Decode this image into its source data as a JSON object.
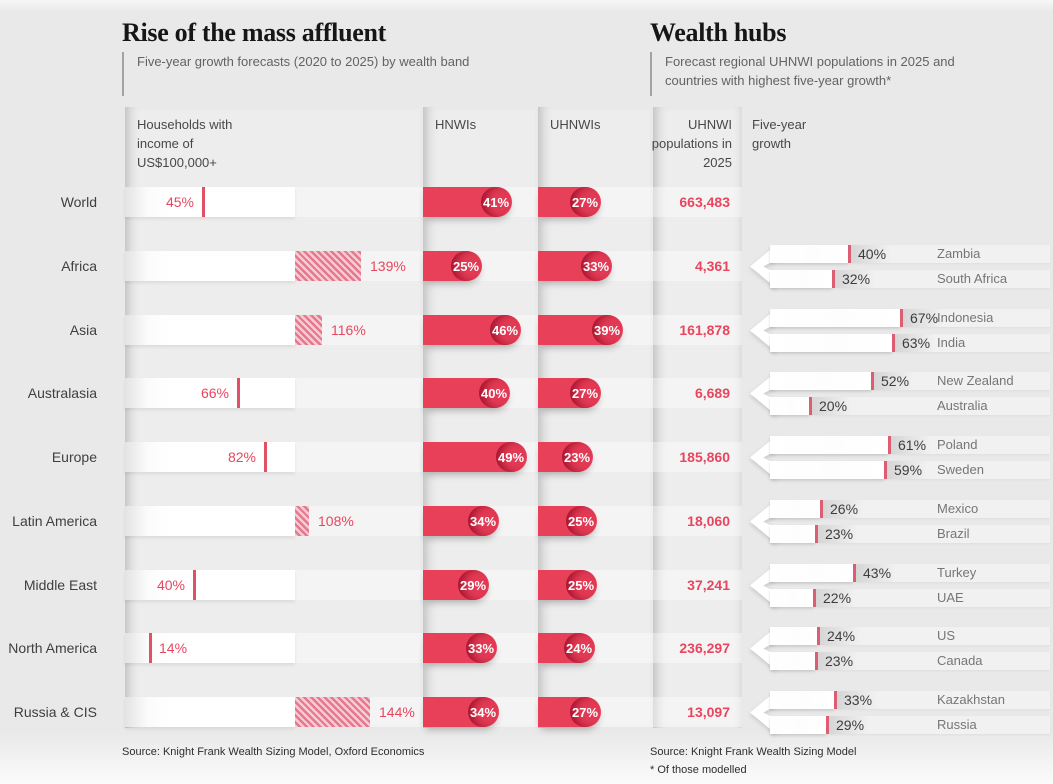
{
  "left_chart": {
    "title": "Rise of the mass affluent",
    "subtitle": "Five-year growth forecasts (2020 to 2025) by wealth band",
    "columns": {
      "households": "Households with income of US$100,000+",
      "hnwis": "HNWIs",
      "uhnwis": "UHNWIs"
    },
    "source": "Source: Knight Frank Wealth Sizing Model, Oxford Economics"
  },
  "right_chart": {
    "title": "Wealth hubs",
    "subtitle": "Forecast regional UHNWI populations in 2025 and countries with highest five-year growth*",
    "columns": {
      "populations": "UHNWI populations in 2025",
      "growth": "Five-year growth"
    },
    "source": "Source: Knight Frank Wealth Sizing Model",
    "footnote": "* Of those modelled"
  },
  "colors": {
    "accent_red": "#e8465f",
    "pill_red": "#e74058",
    "background_grey": "#e9e9e9"
  },
  "chart_data": {
    "type": "bar",
    "unit": "percent growth 2020-2025",
    "categories": [
      "World",
      "Africa",
      "Asia",
      "Australasia",
      "Europe",
      "Latin America",
      "Middle East",
      "North America",
      "Russia & CIS"
    ],
    "series_note": "households bar drawn on 0-100% track; hatched segment = amount above 100%",
    "rows": [
      {
        "region": "World",
        "households_income_100k_growth": 45,
        "hnwi_growth": 41,
        "uhnwi_growth": 27,
        "uhnwi_population_2025": "663,483",
        "top_countries": []
      },
      {
        "region": "Africa",
        "households_income_100k_growth": 139,
        "hnwi_growth": 25,
        "uhnwi_growth": 33,
        "uhnwi_population_2025": "4,361",
        "top_countries": [
          {
            "name": "Zambia",
            "growth": 40
          },
          {
            "name": "South Africa",
            "growth": 32
          }
        ]
      },
      {
        "region": "Asia",
        "households_income_100k_growth": 116,
        "hnwi_growth": 46,
        "uhnwi_growth": 39,
        "uhnwi_population_2025": "161,878",
        "top_countries": [
          {
            "name": "Indonesia",
            "growth": 67
          },
          {
            "name": "India",
            "growth": 63
          }
        ]
      },
      {
        "region": "Australasia",
        "households_income_100k_growth": 66,
        "hnwi_growth": 40,
        "uhnwi_growth": 27,
        "uhnwi_population_2025": "6,689",
        "top_countries": [
          {
            "name": "New Zealand",
            "growth": 52
          },
          {
            "name": "Australia",
            "growth": 20
          }
        ]
      },
      {
        "region": "Europe",
        "households_income_100k_growth": 82,
        "hnwi_growth": 49,
        "uhnwi_growth": 23,
        "uhnwi_population_2025": "185,860",
        "top_countries": [
          {
            "name": "Poland",
            "growth": 61
          },
          {
            "name": "Sweden",
            "growth": 59
          }
        ]
      },
      {
        "region": "Latin America",
        "households_income_100k_growth": 108,
        "hnwi_growth": 34,
        "uhnwi_growth": 25,
        "uhnwi_population_2025": "18,060",
        "top_countries": [
          {
            "name": "Mexico",
            "growth": 26
          },
          {
            "name": "Brazil",
            "growth": 23
          }
        ]
      },
      {
        "region": "Middle East",
        "households_income_100k_growth": 40,
        "hnwi_growth": 29,
        "uhnwi_growth": 25,
        "uhnwi_population_2025": "37,241",
        "top_countries": [
          {
            "name": "Turkey",
            "growth": 43
          },
          {
            "name": "UAE",
            "growth": 22
          }
        ]
      },
      {
        "region": "North America",
        "households_income_100k_growth": 14,
        "hnwi_growth": 33,
        "uhnwi_growth": 24,
        "uhnwi_population_2025": "236,297",
        "top_countries": [
          {
            "name": "US",
            "growth": 24
          },
          {
            "name": "Canada",
            "growth": 23
          }
        ]
      },
      {
        "region": "Russia & CIS",
        "households_income_100k_growth": 144,
        "hnwi_growth": 34,
        "uhnwi_growth": 27,
        "uhnwi_population_2025": "13,097",
        "top_countries": [
          {
            "name": "Kazakhstan",
            "growth": 33
          },
          {
            "name": "Russia",
            "growth": 29
          }
        ]
      }
    ]
  }
}
